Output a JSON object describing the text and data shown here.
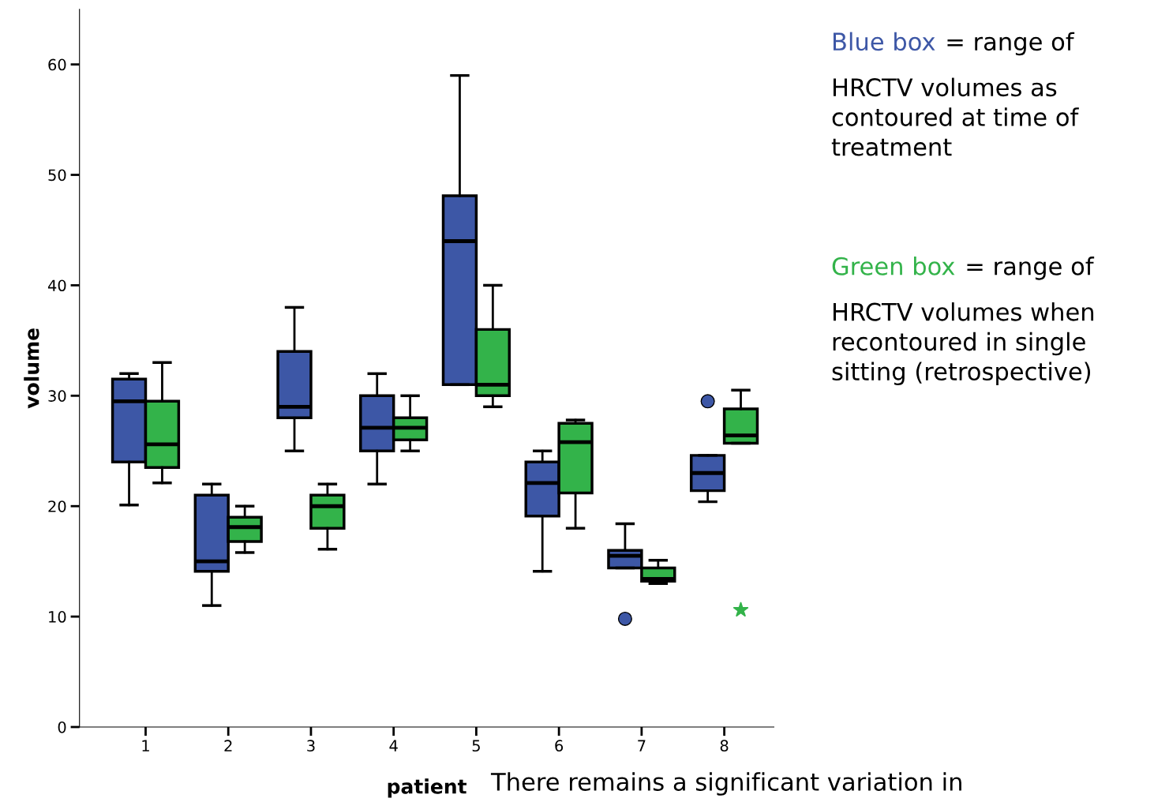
{
  "chart_data": {
    "type": "box",
    "xlabel": "patient",
    "ylabel": "volume",
    "categories": [
      "1",
      "2",
      "3",
      "4",
      "5",
      "6",
      "7",
      "8"
    ],
    "ylim": [
      0,
      65
    ],
    "yticks": [
      0,
      10,
      20,
      30,
      40,
      50,
      60
    ],
    "grid": false,
    "legend": "right",
    "series": [
      {
        "name": "Blue box",
        "color": "#3d57a6",
        "marker": "circle",
        "boxes": [
          {
            "low": 20.1,
            "q1": 24.0,
            "median": 29.5,
            "q3": 31.5,
            "high": 32.0
          },
          {
            "low": 11.0,
            "q1": 14.1,
            "median": 15.0,
            "q3": 21.0,
            "high": 22.0
          },
          {
            "low": 25.0,
            "q1": 28.0,
            "median": 29.0,
            "q3": 34.0,
            "high": 38.0
          },
          {
            "low": 22.0,
            "q1": 25.0,
            "median": 27.1,
            "q3": 30.0,
            "high": 32.0
          },
          {
            "low": 31.0,
            "q1": 31.0,
            "median": 44.0,
            "q3": 48.1,
            "high": 59.0
          },
          {
            "low": 14.1,
            "q1": 19.1,
            "median": 22.1,
            "q3": 24.0,
            "high": 25.0
          },
          {
            "low": 14.4,
            "q1": 14.4,
            "median": 15.5,
            "q3": 16.0,
            "high": 18.4,
            "outliers": [
              9.8
            ]
          },
          {
            "low": 20.4,
            "q1": 21.4,
            "median": 23.0,
            "q3": 24.6,
            "high": 24.6,
            "outliers": [
              29.5
            ]
          }
        ]
      },
      {
        "name": "Green box",
        "color": "#33b34a",
        "marker": "star",
        "boxes": [
          {
            "low": 22.1,
            "q1": 23.5,
            "median": 25.6,
            "q3": 29.5,
            "high": 33.0
          },
          {
            "low": 15.8,
            "q1": 16.8,
            "median": 18.1,
            "q3": 19.0,
            "high": 20.0
          },
          {
            "low": 16.1,
            "q1": 18.0,
            "median": 20.0,
            "q3": 21.0,
            "high": 22.0
          },
          {
            "low": 25.0,
            "q1": 26.0,
            "median": 27.1,
            "q3": 28.0,
            "high": 30.0
          },
          {
            "low": 29.0,
            "q1": 30.0,
            "median": 31.0,
            "q3": 36.0,
            "high": 40.0
          },
          {
            "low": 18.0,
            "q1": 21.2,
            "median": 25.8,
            "q3": 27.5,
            "high": 27.8
          },
          {
            "low": 13.0,
            "q1": 13.2,
            "median": 13.4,
            "q3": 14.4,
            "high": 15.1
          },
          {
            "low": 25.7,
            "q1": 25.7,
            "median": 26.4,
            "q3": 28.8,
            "high": 30.5,
            "outliers": [
              10.6
            ]
          }
        ]
      }
    ],
    "annotations": [
      "= range of\nHRCTV volumes as\ncontoured at time of\ntreatment",
      "= range of\nHRCTV volumes when\nrecontoured in single\nsitting (retrospective)",
      "There remains a significant variation in"
    ]
  }
}
